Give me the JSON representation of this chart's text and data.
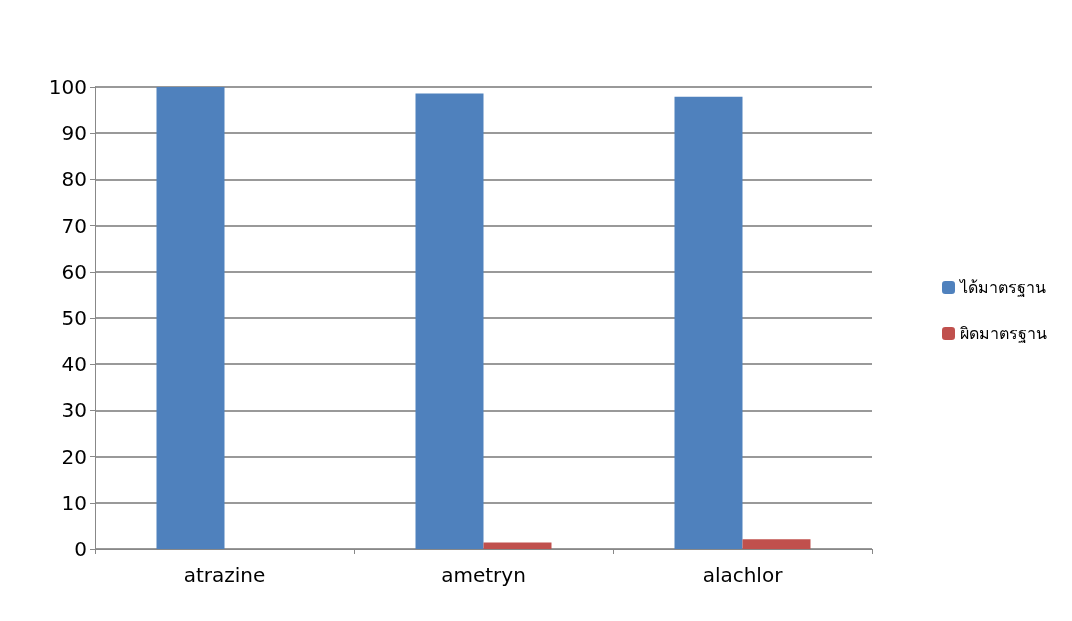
{
  "chart_data": {
    "type": "bar",
    "categories": [
      "atrazine",
      "ametryn",
      "alachlor"
    ],
    "series": [
      {
        "name": "ได้มาตรฐาน",
        "color": "#4f81bd",
        "values": [
          100,
          98.6,
          97.9
        ]
      },
      {
        "name": "ผิดมาตรฐาน",
        "color": "#c0504d",
        "values": [
          0,
          1.4,
          2.1
        ]
      }
    ],
    "ylim": [
      0,
      100
    ],
    "yticks": [
      0,
      10,
      20,
      30,
      40,
      50,
      60,
      70,
      80,
      90,
      100
    ],
    "grid": "y",
    "legend": "right"
  }
}
